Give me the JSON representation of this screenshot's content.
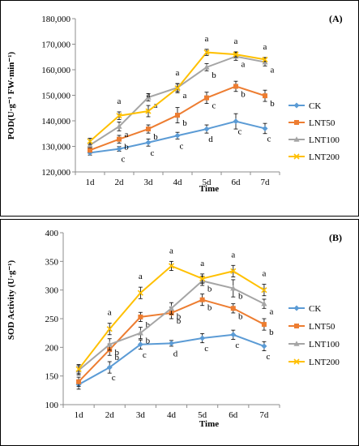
{
  "chart_data": [
    {
      "type": "line",
      "panel_label": "(A)",
      "title": "",
      "xlabel": "Time",
      "ylabel": "POD(U·g⁻¹ FW·min⁻¹)",
      "categories": [
        "1d",
        "2d",
        "3d",
        "4d",
        "5d",
        "6d",
        "7d"
      ],
      "ylim": [
        120000,
        180000
      ],
      "yticks": [
        120000,
        130000,
        140000,
        150000,
        160000,
        170000,
        180000
      ],
      "ytick_labels": [
        "120,000",
        "130,000",
        "140,000",
        "150,000",
        "160,000",
        "170,000",
        "180,000"
      ],
      "grid": false,
      "legend_position": "right",
      "series": [
        {
          "name": "CK",
          "color": "#5b9bd5",
          "marker": "diamond",
          "values": [
            127500,
            129000,
            131500,
            134200,
            136800,
            139800,
            137000
          ],
          "errors": [
            900,
            900,
            1400,
            1300,
            1600,
            3000,
            2000
          ],
          "letters": [
            "",
            "c",
            "c",
            "c",
            "d",
            "c",
            "c"
          ]
        },
        {
          "name": "LNT50",
          "color": "#ed7d31",
          "marker": "square",
          "values": [
            128500,
            132800,
            136800,
            142200,
            149000,
            153500,
            149800
          ],
          "errors": [
            800,
            1500,
            1600,
            3000,
            2200,
            2000,
            2200
          ],
          "letters": [
            "",
            "b",
            "b",
            "b",
            "c",
            "b",
            "b"
          ]
        },
        {
          "name": "LNT100",
          "color": "#a5a5a5",
          "marker": "triangle",
          "values": [
            130500,
            137800,
            149200,
            153000,
            161000,
            165200,
            163000
          ],
          "errors": [
            1000,
            1700,
            1400,
            1500,
            1400,
            1500,
            1500
          ],
          "letters": [
            "",
            "a",
            "a",
            "a",
            "b",
            "a",
            "a"
          ]
        },
        {
          "name": "LNT200",
          "color": "#ffc000",
          "marker": "x",
          "values": [
            132000,
            142000,
            143800,
            152800,
            166800,
            166000,
            164000
          ],
          "errors": [
            1200,
            1500,
            2200,
            1800,
            1200,
            1000,
            800
          ],
          "letters": [
            "",
            "a",
            "a",
            "a",
            "a",
            "a",
            "a"
          ]
        }
      ]
    },
    {
      "type": "line",
      "panel_label": "(B)",
      "title": "",
      "xlabel": "Time",
      "ylabel": "SOD Activity (U·g⁻¹)",
      "categories": [
        "1d",
        "2d",
        "3d",
        "4d",
        "5d",
        "6d",
        "7d"
      ],
      "ylim": [
        100,
        400
      ],
      "yticks": [
        100,
        150,
        200,
        250,
        300,
        350,
        400
      ],
      "ytick_labels": [
        "100",
        "150",
        "200",
        "250",
        "300",
        "350",
        "400"
      ],
      "grid": false,
      "legend_position": "right",
      "series": [
        {
          "name": "CK",
          "color": "#5b9bd5",
          "marker": "diamond",
          "values": [
            135,
            165,
            205,
            207,
            216,
            222,
            202
          ],
          "errors": [
            8,
            10,
            8,
            5,
            8,
            8,
            8
          ],
          "letters": [
            "",
            "c",
            "c",
            "d",
            "c",
            "c",
            "c"
          ]
        },
        {
          "name": "LNT50",
          "color": "#ed7d31",
          "marker": "square",
          "values": [
            140,
            196,
            253,
            260,
            283,
            268,
            240
          ],
          "errors": [
            8,
            10,
            8,
            10,
            10,
            8,
            10
          ],
          "letters": [
            "",
            "b",
            "b",
            "b",
            "b",
            "b",
            "b"
          ]
        },
        {
          "name": "LNT100",
          "color": "#a5a5a5",
          "marker": "triangle",
          "values": [
            160,
            205,
            225,
            268,
            316,
            303,
            276
          ],
          "errors": [
            8,
            10,
            10,
            10,
            8,
            15,
            8
          ],
          "letters": [
            "",
            "b",
            "b",
            "b",
            "b",
            "b",
            "a"
          ]
        },
        {
          "name": "LNT200",
          "color": "#ffc000",
          "marker": "x",
          "values": [
            162,
            232,
            295,
            342,
            320,
            333,
            300
          ],
          "errors": [
            8,
            10,
            10,
            8,
            8,
            10,
            10
          ],
          "letters": [
            "",
            "a",
            "a",
            "a",
            "a",
            "a",
            "a"
          ]
        }
      ]
    }
  ]
}
